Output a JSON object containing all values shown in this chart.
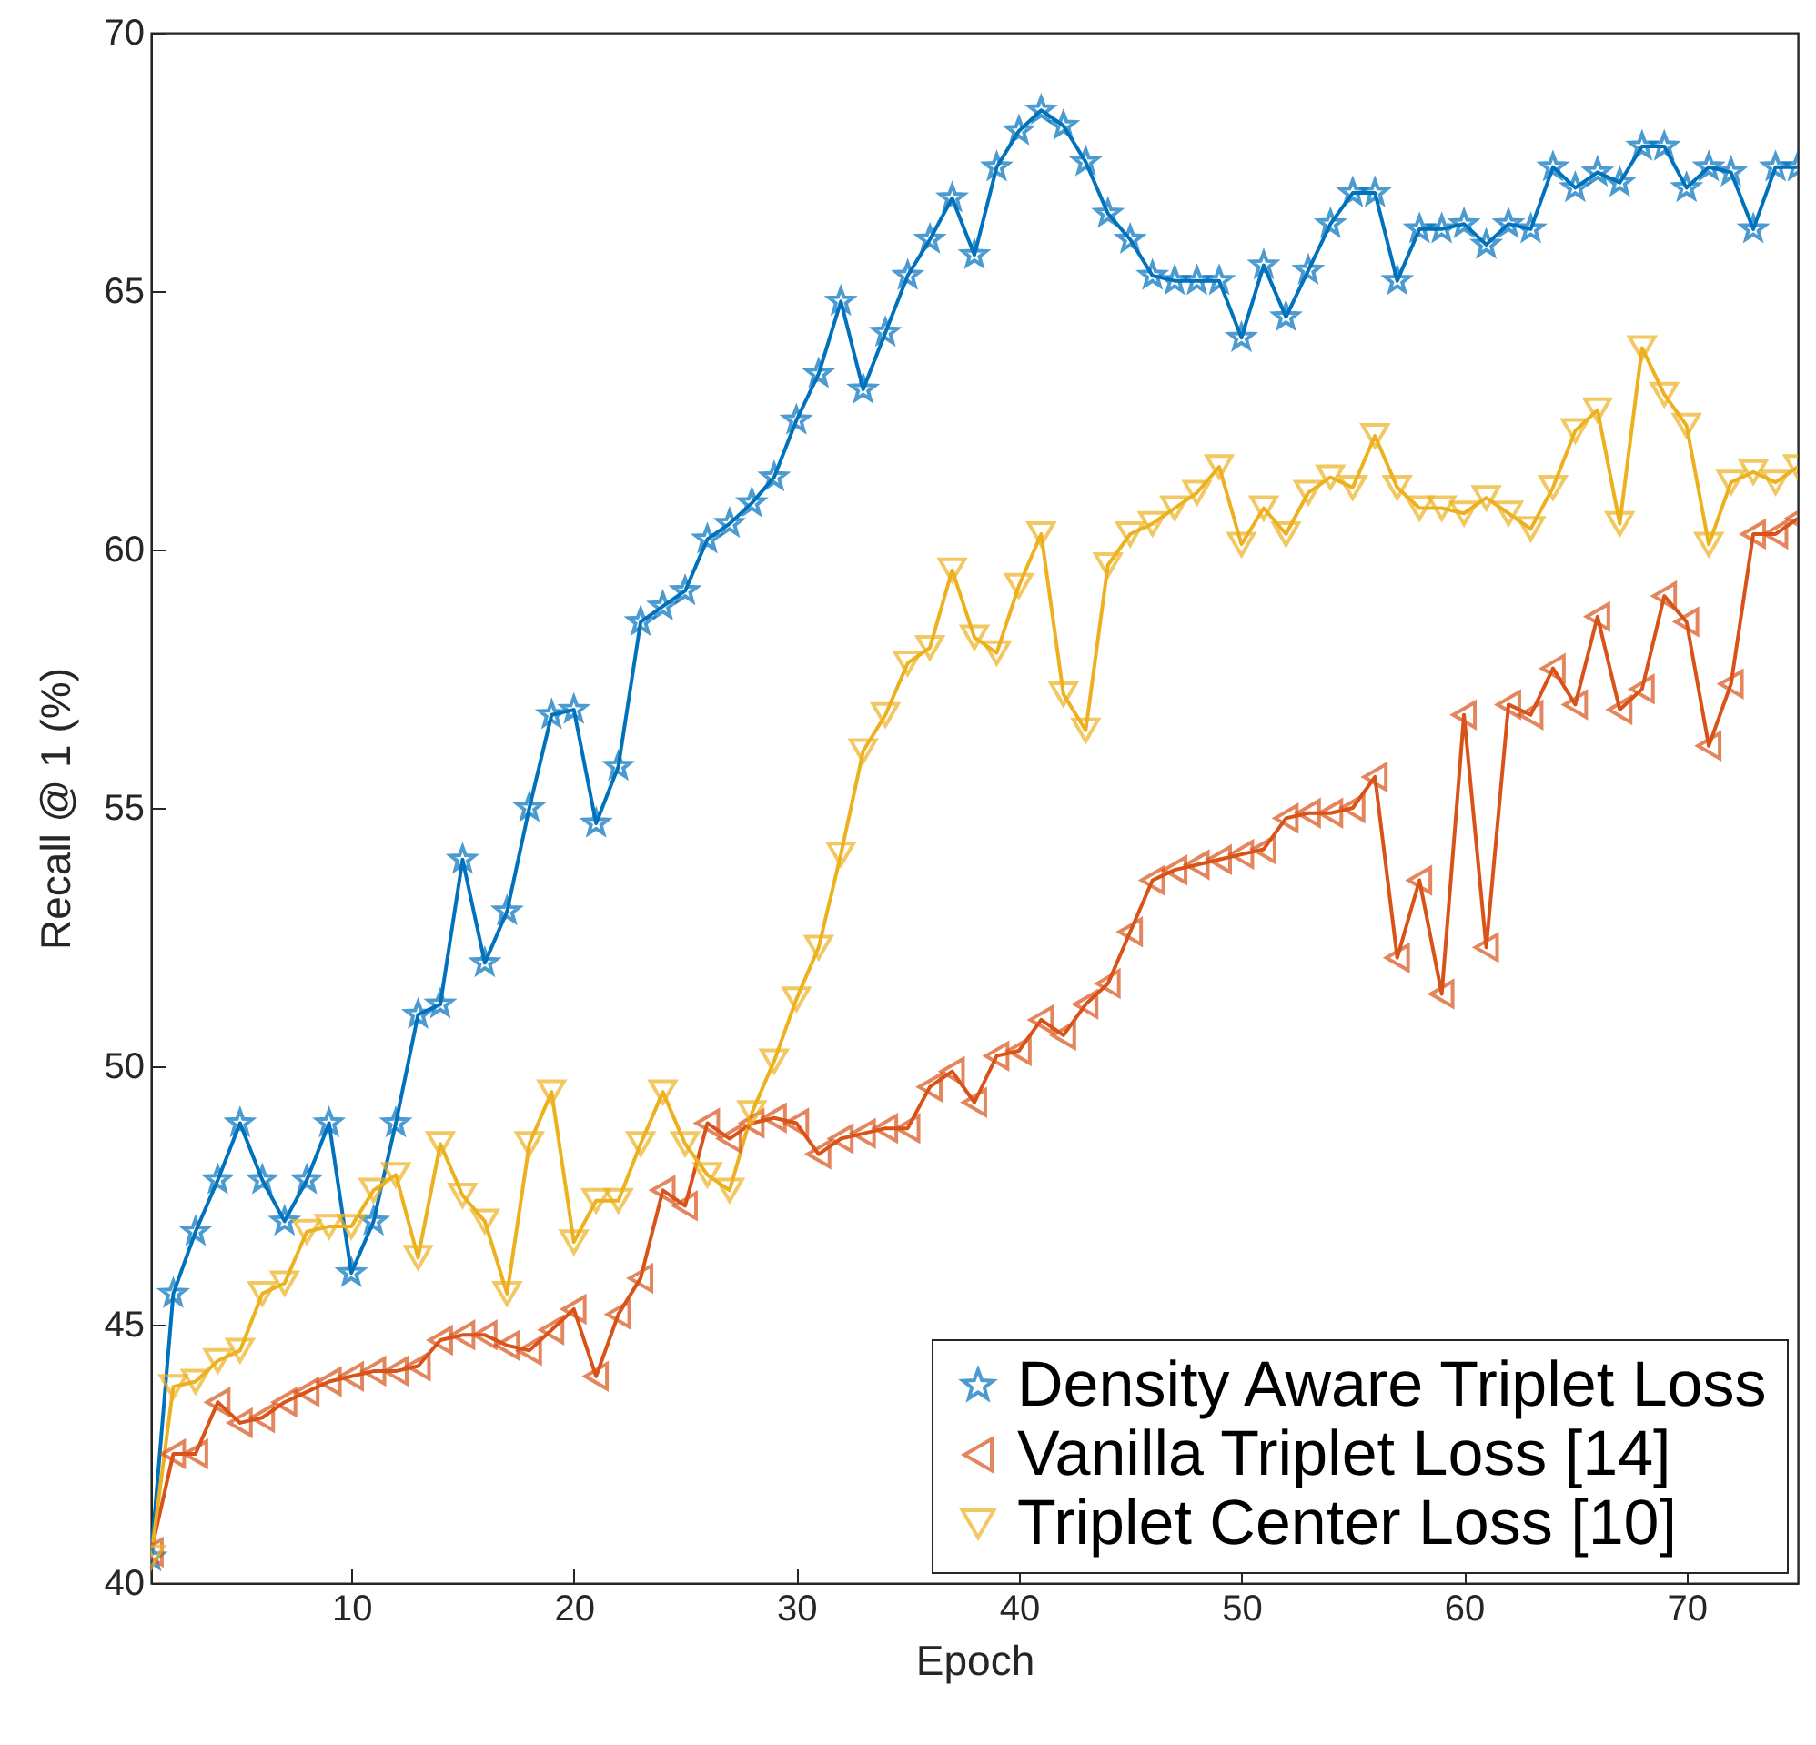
{
  "chart_data": {
    "type": "line",
    "xlabel": "Epoch",
    "ylabel": "Recall @ 1 (%)",
    "x": [
      1,
      2,
      3,
      4,
      5,
      6,
      7,
      8,
      9,
      10,
      11,
      12,
      13,
      14,
      15,
      16,
      17,
      18,
      19,
      20,
      21,
      22,
      23,
      24,
      25,
      26,
      27,
      28,
      29,
      30,
      31,
      32,
      33,
      34,
      35,
      36,
      37,
      38,
      39,
      40,
      41,
      42,
      43,
      44,
      45,
      46,
      47,
      48,
      49,
      50,
      51,
      52,
      53,
      54,
      55,
      56,
      57,
      58,
      59,
      60,
      61,
      62,
      63,
      64,
      65,
      66,
      67,
      68,
      69,
      70,
      71,
      72,
      73,
      74,
      75
    ],
    "xlim": [
      1,
      75
    ],
    "xticks": [
      10,
      20,
      30,
      40,
      50,
      60,
      70
    ],
    "ylim": [
      40,
      70
    ],
    "yticks": [
      40,
      45,
      50,
      55,
      60,
      65,
      70
    ],
    "grid": false,
    "legend": "bottom right",
    "series": [
      {
        "name": "Density Aware Triplet Loss",
        "color": "#0072bd",
        "marker": "star",
        "values": [
          40.5,
          45.6,
          46.8,
          47.8,
          48.9,
          47.8,
          47.0,
          47.8,
          48.9,
          46.0,
          47.0,
          48.9,
          51.0,
          51.2,
          54.0,
          52.0,
          53.0,
          55.0,
          56.8,
          56.9,
          54.7,
          55.8,
          58.6,
          58.9,
          59.2,
          60.2,
          60.5,
          60.9,
          61.4,
          62.5,
          63.4,
          64.8,
          63.1,
          64.2,
          65.3,
          66.0,
          66.8,
          65.7,
          67.4,
          68.1,
          68.5,
          68.2,
          67.5,
          66.5,
          66.0,
          65.3,
          65.2,
          65.2,
          65.2,
          64.1,
          65.5,
          64.5,
          65.4,
          66.3,
          66.9,
          66.9,
          65.2,
          66.2,
          66.2,
          66.3,
          65.9,
          66.3,
          66.2,
          67.4,
          67.0,
          67.3,
          67.1,
          67.8,
          67.8,
          67.0,
          67.4,
          67.3,
          66.2,
          67.4,
          67.4
        ]
      },
      {
        "name": "Vanilla Triplet Loss [14]",
        "color": "#d95319",
        "marker": "triangle-left",
        "values": [
          40.6,
          42.5,
          42.5,
          43.5,
          43.1,
          43.2,
          43.5,
          43.7,
          43.9,
          44.0,
          44.1,
          44.1,
          44.2,
          44.7,
          44.8,
          44.8,
          44.6,
          44.5,
          44.9,
          45.3,
          44.0,
          45.2,
          45.9,
          47.6,
          47.3,
          48.9,
          48.6,
          48.9,
          49.0,
          48.9,
          48.3,
          48.6,
          48.7,
          48.8,
          48.8,
          49.6,
          49.9,
          49.3,
          50.2,
          50.3,
          50.9,
          50.6,
          51.2,
          51.6,
          52.6,
          53.6,
          53.8,
          53.9,
          54.0,
          54.1,
          54.2,
          54.8,
          54.9,
          54.9,
          55.0,
          55.6,
          52.1,
          53.6,
          51.4,
          56.8,
          52.3,
          57.0,
          56.8,
          57.7,
          57.0,
          58.7,
          56.9,
          57.3,
          59.1,
          58.6,
          56.2,
          57.4,
          60.3,
          60.3,
          60.6
        ]
      },
      {
        "name": "Triplet Center Loss [10]",
        "color": "#edb120",
        "marker": "triangle-down",
        "values": [
          40.5,
          43.8,
          43.9,
          44.3,
          44.5,
          45.6,
          45.8,
          46.8,
          46.9,
          46.9,
          47.6,
          47.9,
          46.3,
          48.5,
          47.5,
          47.0,
          45.6,
          48.5,
          49.5,
          46.6,
          47.4,
          47.4,
          48.5,
          49.5,
          48.5,
          47.9,
          47.6,
          49.1,
          50.1,
          51.3,
          52.3,
          54.1,
          56.1,
          56.8,
          57.8,
          58.1,
          59.6,
          58.3,
          58.0,
          59.3,
          60.3,
          57.2,
          56.5,
          59.7,
          60.3,
          60.5,
          60.8,
          61.1,
          61.6,
          60.1,
          60.8,
          60.3,
          61.1,
          61.4,
          61.2,
          62.2,
          61.2,
          60.8,
          60.8,
          60.7,
          61.0,
          60.7,
          60.4,
          61.2,
          62.3,
          62.7,
          60.5,
          63.9,
          63.0,
          62.4,
          60.1,
          61.3,
          61.5,
          61.3,
          61.6
        ]
      }
    ]
  }
}
